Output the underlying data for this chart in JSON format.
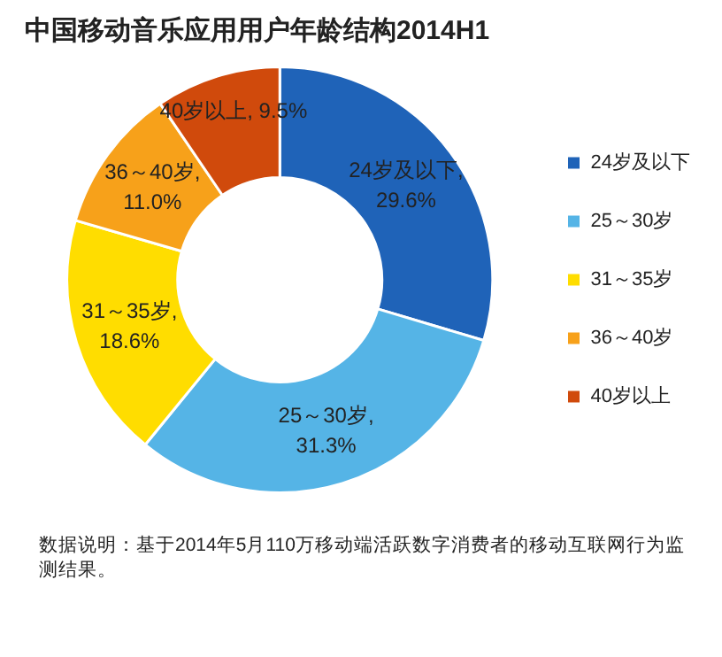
{
  "chart_data": {
    "type": "donut",
    "title": "中国移动音乐应用用户年龄结构2014H1",
    "categories": [
      "24岁及以下",
      "25～30岁",
      "31～35岁",
      "36～40岁",
      "40岁以上"
    ],
    "values": [
      29.6,
      31.3,
      18.6,
      11.0,
      9.5
    ],
    "colors": [
      "#1f63b8",
      "#55b4e6",
      "#ffdd00",
      "#f7a11a",
      "#d04a0c"
    ],
    "value_labels": [
      "24岁及以下, 29.6%",
      "25～30岁, 31.3%",
      "31～35岁, 18.6%",
      "36～40岁, 11.0%",
      "40岁以上, 9.5%"
    ],
    "legend": "right",
    "annotations": [
      "数据说明：基于2014年5月110万移动端活跃数字消费者的移动互联网行为监测结果。"
    ]
  }
}
